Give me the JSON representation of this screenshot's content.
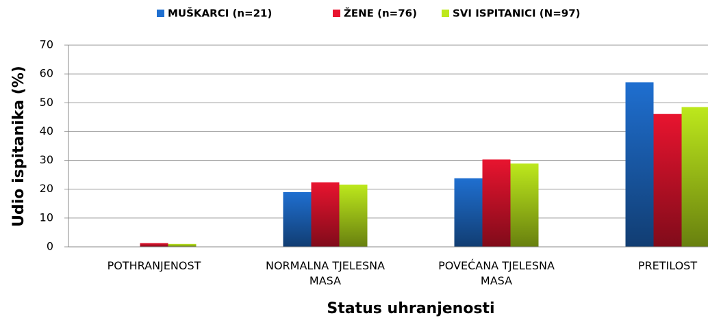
{
  "chart_data": {
    "type": "bar",
    "x_label": "Status uhranjenosti",
    "y_label": "Udio ispitanika (%)",
    "categories": [
      "POTHRANJENOST",
      "NORMALNA TJELESNA MASA",
      "POVEĆANA TJELESNA MASA",
      "PRETILOST"
    ],
    "series": [
      {
        "name": "MUŠKARCI (n=21)",
        "color": "#1f6fd0",
        "values": [
          0,
          19.0,
          23.8,
          57.1
        ]
      },
      {
        "name": "ŽENE (n=76)",
        "color": "#e8142f",
        "values": [
          1.3,
          22.4,
          30.3,
          46.1
        ]
      },
      {
        "name": "SVI ISPITANICI (N=97)",
        "color": "#bde81c",
        "values": [
          1.0,
          21.6,
          28.9,
          48.5
        ]
      }
    ],
    "ylim": [
      0,
      70
    ],
    "yticks": [
      0,
      10,
      20,
      30,
      40,
      50,
      60,
      70
    ],
    "grid": true,
    "legend": "top"
  }
}
